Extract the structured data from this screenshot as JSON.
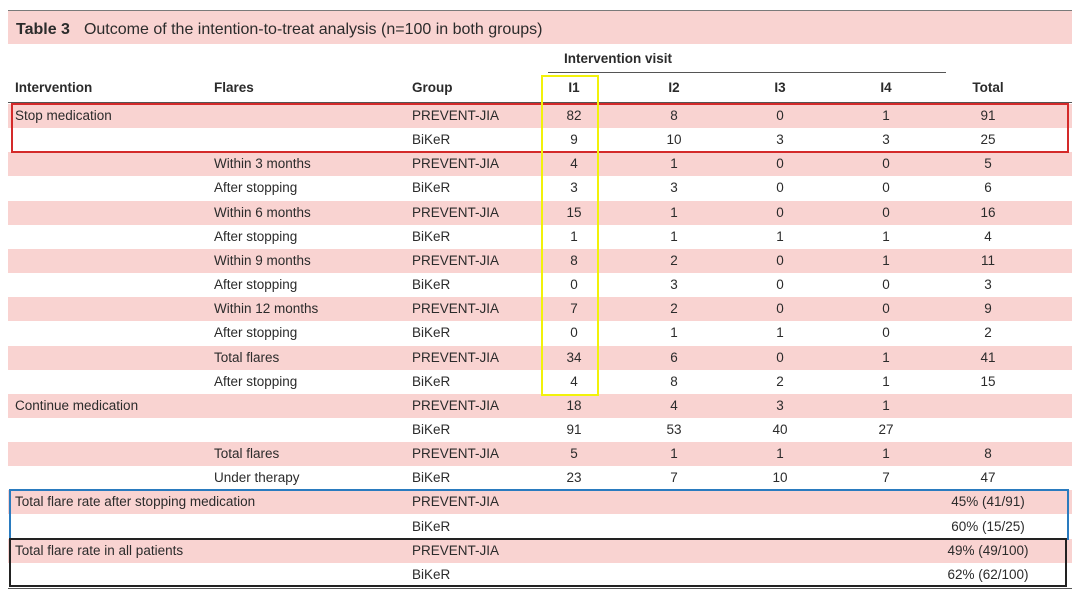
{
  "caption": {
    "number": "Table 3",
    "text": "Outcome of the intention-to-treat analysis (n=100 in both groups)"
  },
  "header": {
    "group_heading": "Intervention visit",
    "columns": [
      "Intervention",
      "Flares",
      "Group",
      "I1",
      "I2",
      "I3",
      "I4",
      "Total"
    ]
  },
  "rows": [
    [
      "Stop medication",
      "",
      "PREVENT-JIA",
      "82",
      "8",
      "0",
      "1",
      "91"
    ],
    [
      "",
      "",
      "BiKeR",
      "9",
      "10",
      "3",
      "3",
      "25"
    ],
    [
      "",
      "Within 3 months",
      "PREVENT-JIA",
      "4",
      "1",
      "0",
      "0",
      "5"
    ],
    [
      "",
      "After stopping",
      "BiKeR",
      "3",
      "3",
      "0",
      "0",
      "6"
    ],
    [
      "",
      "Within 6 months",
      "PREVENT-JIA",
      "15",
      "1",
      "0",
      "0",
      "16"
    ],
    [
      "",
      "After stopping",
      "BiKeR",
      "1",
      "1",
      "1",
      "1",
      "4"
    ],
    [
      "",
      "Within 9 months",
      "PREVENT-JIA",
      "8",
      "2",
      "0",
      "1",
      "11"
    ],
    [
      "",
      "After stopping",
      "BiKeR",
      "0",
      "3",
      "0",
      "0",
      "3"
    ],
    [
      "",
      "Within 12 months",
      "PREVENT-JIA",
      "7",
      "2",
      "0",
      "0",
      "9"
    ],
    [
      "",
      "After stopping",
      "BiKeR",
      "0",
      "1",
      "1",
      "0",
      "2"
    ],
    [
      "",
      "Total flares",
      "PREVENT-JIA",
      "34",
      "6",
      "0",
      "1",
      "41"
    ],
    [
      "",
      "After stopping",
      "BiKeR",
      "4",
      "8",
      "2",
      "1",
      "15"
    ],
    [
      "Continue medication",
      "",
      "PREVENT-JIA",
      "18",
      "4",
      "3",
      "1",
      ""
    ],
    [
      "",
      "",
      "BiKeR",
      "91",
      "53",
      "40",
      "27",
      ""
    ],
    [
      "",
      "Total flares",
      "PREVENT-JIA",
      "5",
      "1",
      "1",
      "1",
      "8"
    ],
    [
      "",
      "Under therapy",
      "BiKeR",
      "23",
      "7",
      "10",
      "7",
      "47"
    ],
    [
      "Total flare rate after stopping medication",
      "",
      "PREVENT-JIA",
      "",
      "",
      "",
      "",
      "45% (41/91)"
    ],
    [
      "",
      "",
      "BiKeR",
      "",
      "",
      "",
      "",
      "60% (15/25)"
    ],
    [
      "Total flare rate in all patients",
      "",
      "PREVENT-JIA",
      "",
      "",
      "",
      "",
      "49% (49/100)"
    ],
    [
      "",
      "",
      "BiKeR",
      "",
      "",
      "",
      "",
      "62% (62/100)"
    ]
  ],
  "highlight_colors": {
    "row_shading": "#f9d3d1",
    "stop_medication_box": "#d42a2a",
    "i1_column_box": "#f2f20a",
    "flare_rate_stopping_box": "#2a7bbf",
    "flare_rate_all_box": "#222222"
  }
}
